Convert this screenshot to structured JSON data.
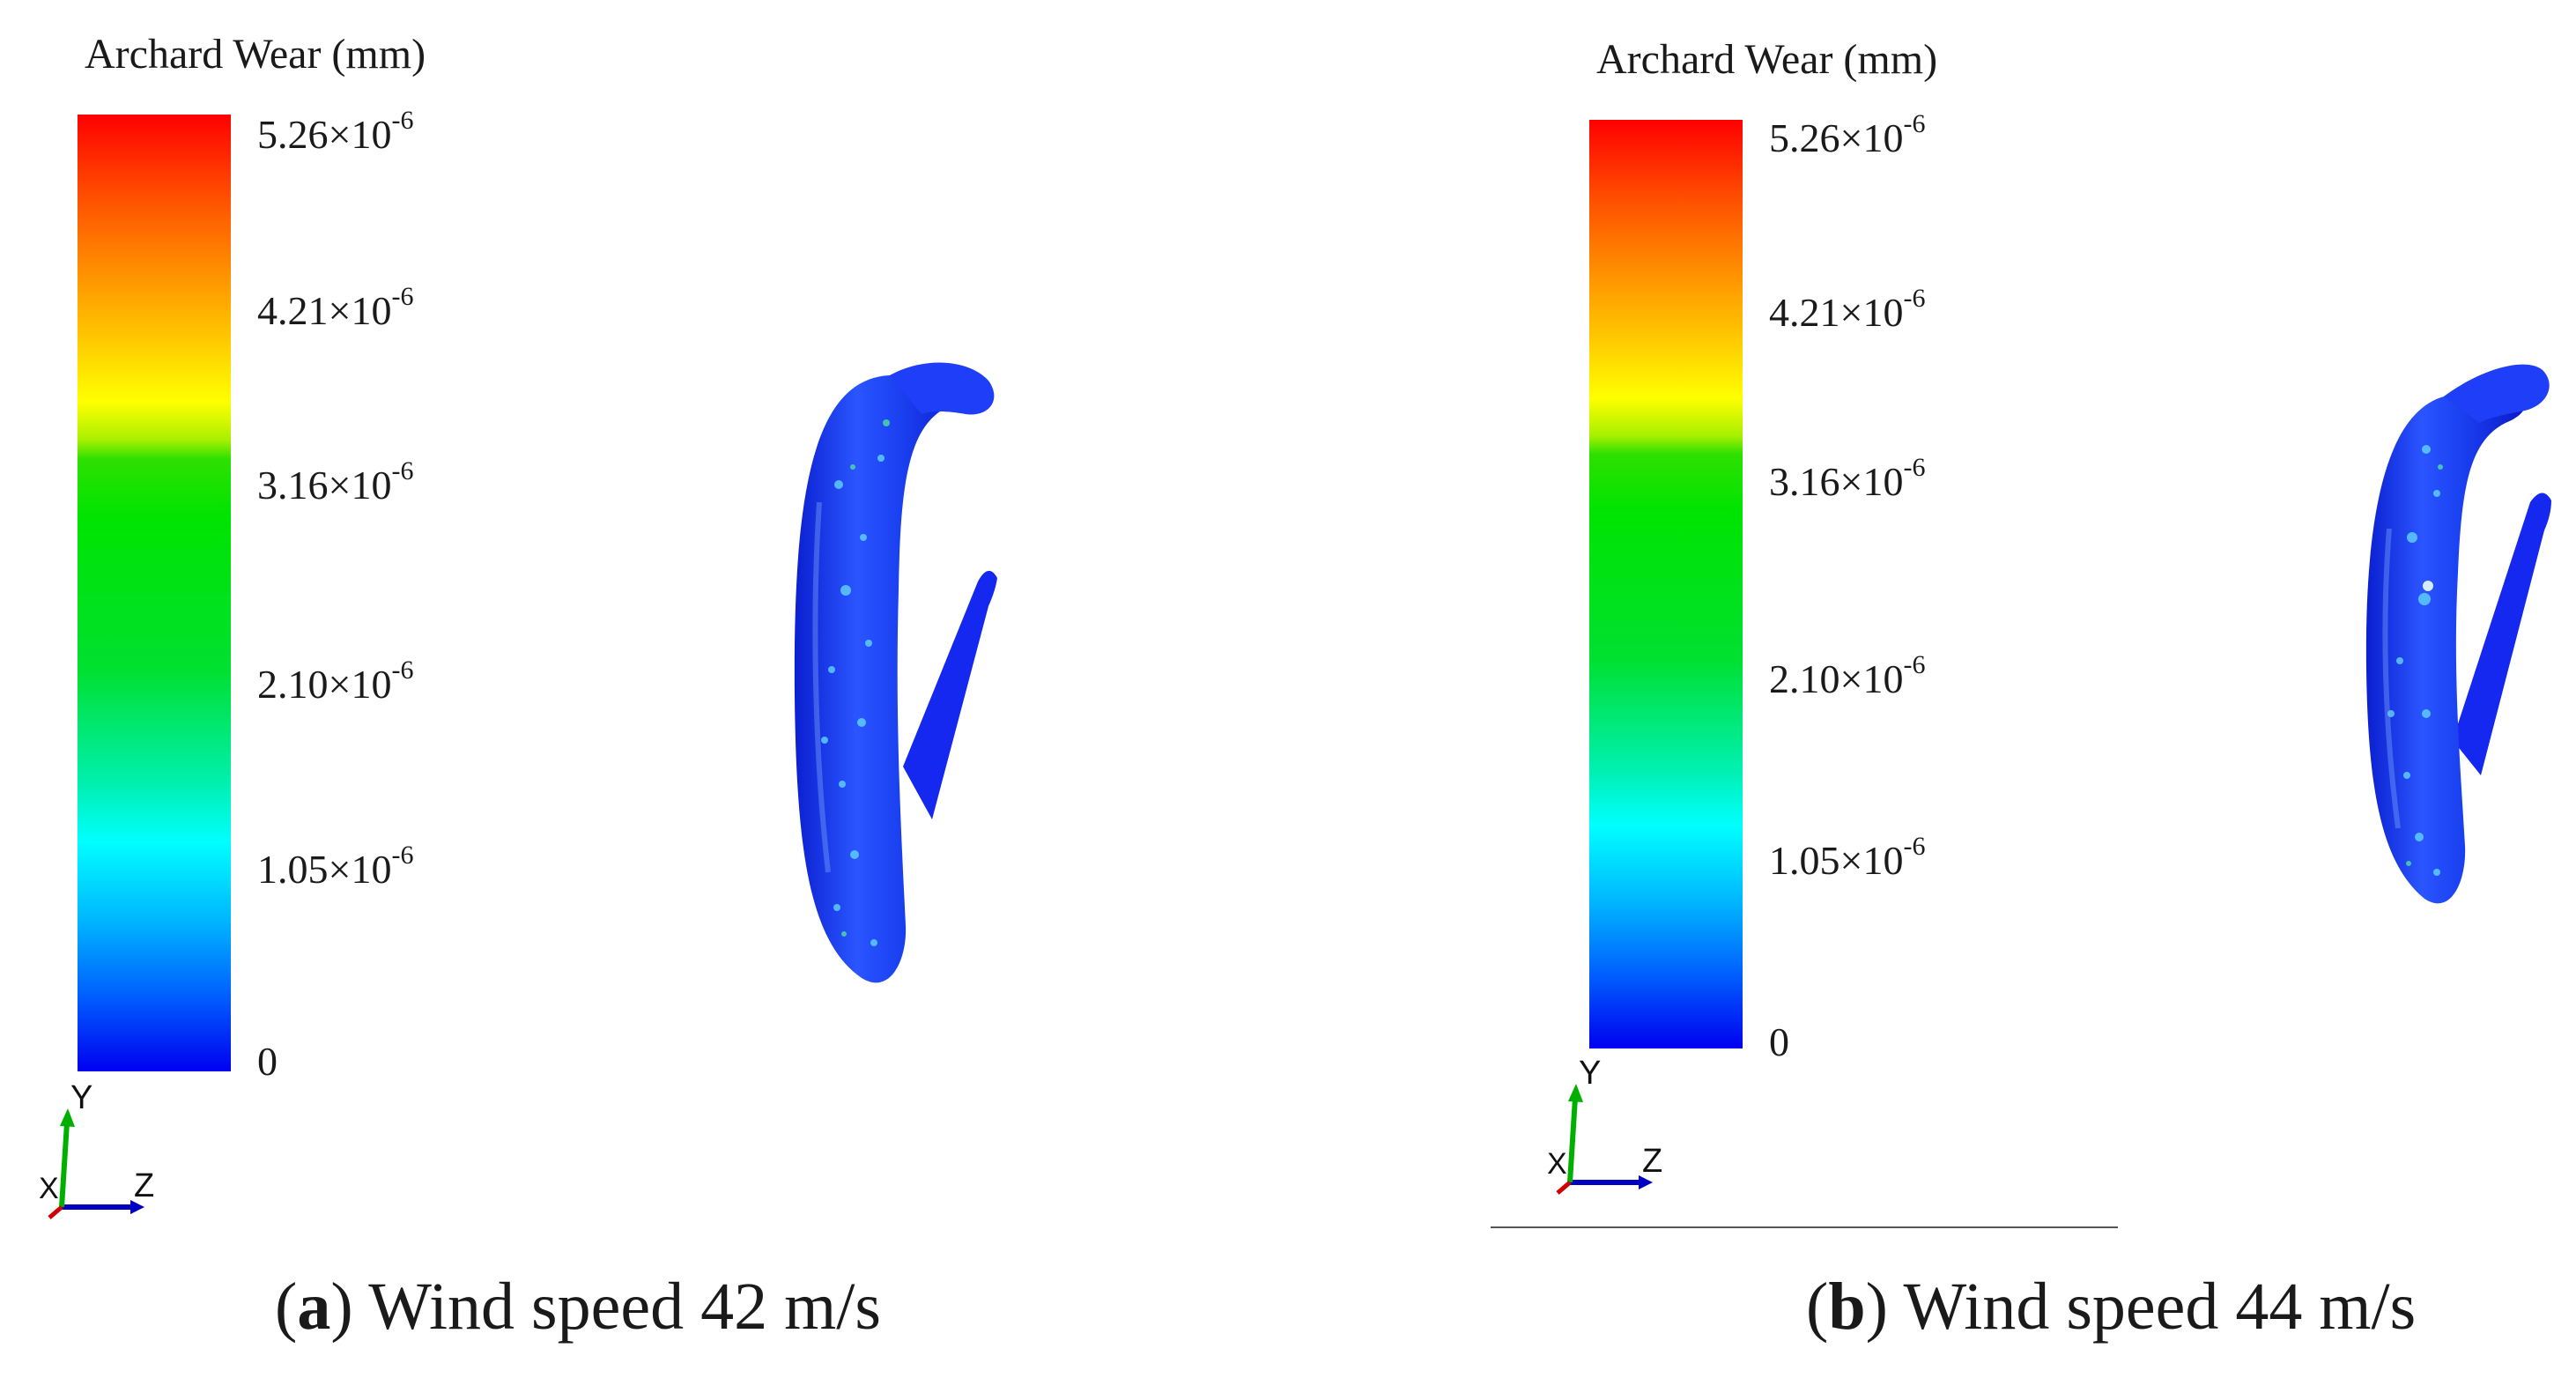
{
  "panels": [
    {
      "id": "a",
      "legend_title": "Archard Wear (mm)",
      "ticks": [
        {
          "base": "5.26×10",
          "exp": "-6"
        },
        {
          "base": "4.21×10",
          "exp": "-6"
        },
        {
          "base": "3.16×10",
          "exp": "-6"
        },
        {
          "base": "2.10×10",
          "exp": "-6"
        },
        {
          "base": "1.05×10",
          "exp": "-6"
        },
        {
          "base": "0",
          "exp": ""
        }
      ],
      "axes": {
        "y": "Y",
        "x": "X",
        "z": "Z"
      },
      "caption": {
        "letter": "a",
        "text": " Wind speed 42 m/s"
      }
    },
    {
      "id": "b",
      "legend_title": "Archard Wear (mm)",
      "ticks": [
        {
          "base": "5.26×10",
          "exp": "-6"
        },
        {
          "base": "4.21×10",
          "exp": "-6"
        },
        {
          "base": "3.16×10",
          "exp": "-6"
        },
        {
          "base": "2.10×10",
          "exp": "-6"
        },
        {
          "base": "1.05×10",
          "exp": "-6"
        },
        {
          "base": "0",
          "exp": ""
        }
      ],
      "axes": {
        "y": "Y",
        "x": "X",
        "z": "Z"
      },
      "caption": {
        "letter": "b",
        "text": " Wind speed 44 m/s"
      }
    }
  ],
  "colors": {
    "scale_max": "#ff0000",
    "scale_mid": "#00e400",
    "scale_min": "#0000f0",
    "model_base": "#1430f0",
    "axis_x": "#d00000",
    "axis_y": "#00b000",
    "axis_z": "#0000c0"
  }
}
